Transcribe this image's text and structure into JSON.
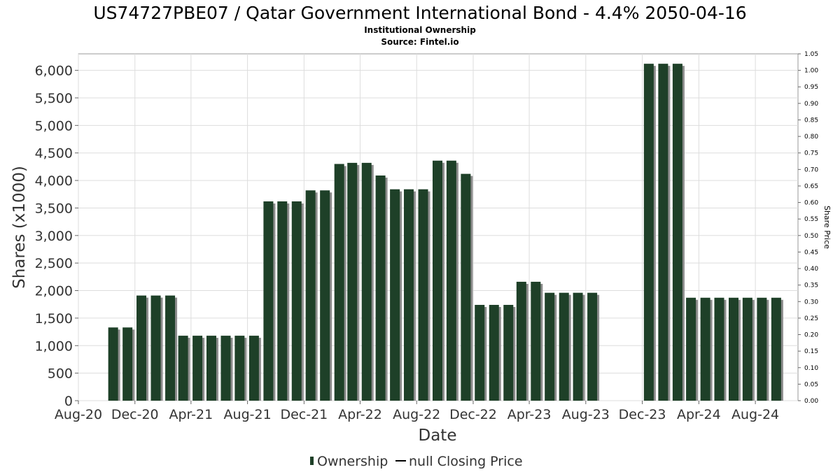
{
  "chart_data": {
    "type": "bar",
    "title": "US74727PBE07 / Qatar Government International Bond - 4.4% 2050-04-16",
    "subtitle_lines": [
      "Institutional Ownership",
      "Source: Fintel.io"
    ],
    "xlabel": "Date",
    "ylabel": "Shares (x1000)",
    "y2label": "Share Price",
    "ylim": [
      0,
      6300
    ],
    "yticks": [
      0,
      500,
      1000,
      1500,
      2000,
      2500,
      3000,
      3500,
      4000,
      4500,
      5000,
      5500,
      6000
    ],
    "ytick_labels": [
      "0",
      "500",
      "1,000",
      "1,500",
      "2,000",
      "2,500",
      "3,000",
      "3,500",
      "4,000",
      "4,500",
      "5,000",
      "5,500",
      "6,000"
    ],
    "y2lim": [
      0,
      1.05
    ],
    "y2ticks": [
      "0.00",
      "0.05",
      "0.10",
      "0.15",
      "0.20",
      "0.25",
      "0.30",
      "0.35",
      "0.40",
      "0.45",
      "0.50",
      "0.55",
      "0.60",
      "0.65",
      "0.70",
      "0.75",
      "0.80",
      "0.85",
      "0.90",
      "0.95",
      "1.00",
      "1.05"
    ],
    "xlim": [
      "2020-08-01",
      "2024-11-01"
    ],
    "xticks": [
      {
        "label": "Aug-20",
        "date": "2020-08-01"
      },
      {
        "label": "Dec-20",
        "date": "2020-12-01"
      },
      {
        "label": "Apr-21",
        "date": "2021-04-01"
      },
      {
        "label": "Aug-21",
        "date": "2021-08-01"
      },
      {
        "label": "Dec-21",
        "date": "2021-12-01"
      },
      {
        "label": "Apr-22",
        "date": "2022-04-01"
      },
      {
        "label": "Aug-22",
        "date": "2022-08-01"
      },
      {
        "label": "Dec-22",
        "date": "2022-12-01"
      },
      {
        "label": "Apr-23",
        "date": "2023-04-01"
      },
      {
        "label": "Aug-23",
        "date": "2023-08-01"
      },
      {
        "label": "Dec-23",
        "date": "2023-12-01"
      },
      {
        "label": "Apr-24",
        "date": "2024-04-01"
      },
      {
        "label": "Aug-24",
        "date": "2024-08-01"
      }
    ],
    "grid": true,
    "legend_position": "bottom-center",
    "series": [
      {
        "name": "Ownership",
        "color": "#1e4028",
        "points": [
          {
            "date": "2020-10-15",
            "value": 1330
          },
          {
            "date": "2020-11-15",
            "value": 1330
          },
          {
            "date": "2020-12-15",
            "value": 1910
          },
          {
            "date": "2021-01-15",
            "value": 1910
          },
          {
            "date": "2021-02-15",
            "value": 1910
          },
          {
            "date": "2021-03-15",
            "value": 1180
          },
          {
            "date": "2021-04-15",
            "value": 1180
          },
          {
            "date": "2021-05-15",
            "value": 1180
          },
          {
            "date": "2021-06-15",
            "value": 1180
          },
          {
            "date": "2021-07-15",
            "value": 1180
          },
          {
            "date": "2021-08-15",
            "value": 1180
          },
          {
            "date": "2021-09-15",
            "value": 3620
          },
          {
            "date": "2021-10-15",
            "value": 3620
          },
          {
            "date": "2021-11-15",
            "value": 3620
          },
          {
            "date": "2021-12-15",
            "value": 3820
          },
          {
            "date": "2022-01-15",
            "value": 3820
          },
          {
            "date": "2022-02-15",
            "value": 4300
          },
          {
            "date": "2022-03-15",
            "value": 4320
          },
          {
            "date": "2022-04-15",
            "value": 4320
          },
          {
            "date": "2022-05-15",
            "value": 4090
          },
          {
            "date": "2022-06-15",
            "value": 3840
          },
          {
            "date": "2022-07-15",
            "value": 3840
          },
          {
            "date": "2022-08-15",
            "value": 3840
          },
          {
            "date": "2022-09-15",
            "value": 4360
          },
          {
            "date": "2022-10-15",
            "value": 4360
          },
          {
            "date": "2022-11-15",
            "value": 4120
          },
          {
            "date": "2022-12-15",
            "value": 1740
          },
          {
            "date": "2023-01-15",
            "value": 1740
          },
          {
            "date": "2023-02-15",
            "value": 1740
          },
          {
            "date": "2023-03-15",
            "value": 2160
          },
          {
            "date": "2023-04-15",
            "value": 2160
          },
          {
            "date": "2023-05-15",
            "value": 1960
          },
          {
            "date": "2023-06-15",
            "value": 1960
          },
          {
            "date": "2023-07-15",
            "value": 1960
          },
          {
            "date": "2023-08-15",
            "value": 1960
          },
          {
            "date": "2023-12-15",
            "value": 6120
          },
          {
            "date": "2024-01-15",
            "value": 6120
          },
          {
            "date": "2024-02-15",
            "value": 6120
          },
          {
            "date": "2024-03-15",
            "value": 1870
          },
          {
            "date": "2024-04-15",
            "value": 1870
          },
          {
            "date": "2024-05-15",
            "value": 1870
          },
          {
            "date": "2024-06-15",
            "value": 1870
          },
          {
            "date": "2024-07-15",
            "value": 1870
          },
          {
            "date": "2024-08-15",
            "value": 1870
          },
          {
            "date": "2024-09-15",
            "value": 1870
          }
        ]
      },
      {
        "name": "null Closing Price",
        "color": "#000000",
        "points": []
      }
    ]
  }
}
